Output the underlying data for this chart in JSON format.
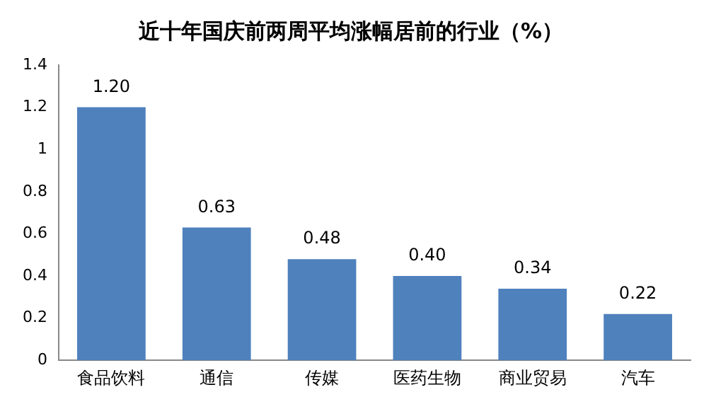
{
  "chart_data": {
    "type": "bar",
    "title": "近十年国庆前两周平均涨幅居前的行业（%）",
    "categories": [
      "食品饮料",
      "通信",
      "传媒",
      "医药生物",
      "商业贸易",
      "汽车"
    ],
    "values": [
      1.2,
      0.63,
      0.48,
      0.4,
      0.34,
      0.22
    ],
    "value_labels": [
      "1.20",
      "0.63",
      "0.48",
      "0.40",
      "0.34",
      "0.22"
    ],
    "color": "#4f81bd",
    "ylim": [
      0,
      1.4
    ],
    "yticks": [
      0,
      0.2,
      0.4,
      0.6,
      0.8,
      1,
      1.2,
      1.4
    ],
    "grid": false,
    "legend": false
  }
}
